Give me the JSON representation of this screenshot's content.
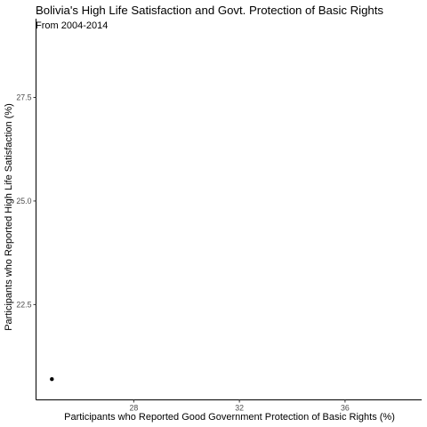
{
  "chart_data": {
    "type": "scatter",
    "title": "Bolivia's High Life Satisfaction and Govt. Protection of Basic Rights",
    "subtitle": "From 2004-2014",
    "xlabel": "Participants who Reported Good Government Protection of Basic Rights (%)",
    "ylabel": "Participants who Reported High Life Satisfaction (%)",
    "xlim": [
      24.3,
      38.9
    ],
    "ylim": [
      20.2,
      29.4
    ],
    "x_ticks": [
      "28",
      "32",
      "36"
    ],
    "y_ticks": [
      "22.5",
      "25.0",
      "27.5"
    ],
    "points": [
      {
        "x": 24.9,
        "y": 20.7
      }
    ],
    "point_color": "#000000",
    "grid": false,
    "legend": "none"
  }
}
